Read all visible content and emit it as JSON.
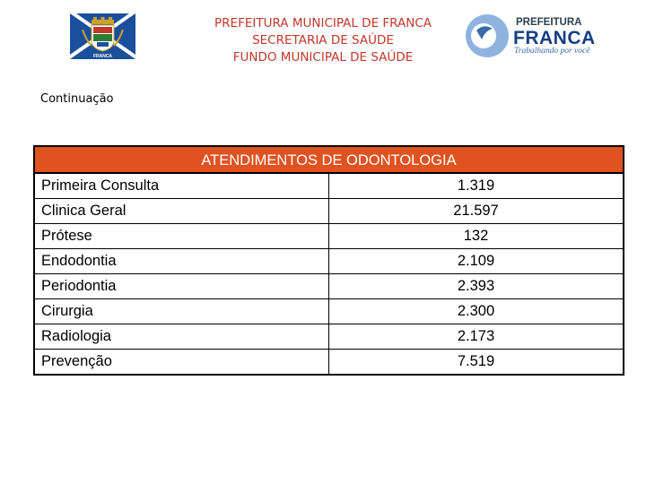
{
  "header": {
    "line1": "PREFEITURA MUNICIPAL DE FRANCA",
    "line2": "SECRETARIA DE SAÚDE",
    "line3": "FUNDO MUNICIPAL DE SAÚDE",
    "text_color": "#c0392b"
  },
  "flag": {
    "label": "FRANCA",
    "color": "#1a4f9c"
  },
  "logo": {
    "line1": "PREFEITURA",
    "line2": "FRANCA",
    "tagline": "Trabalhando por você"
  },
  "continuation_label": "Continuação",
  "table": {
    "title": "ATENDIMENTOS DE ODONTOLOGIA",
    "header_color": "#e0521f",
    "rows": [
      {
        "label": "Primeira Consulta",
        "value": "1.319"
      },
      {
        "label": "Clinica Geral",
        "value": "21.597"
      },
      {
        "label": "Prótese",
        "value": "132"
      },
      {
        "label": "Endodontia",
        "value": "2.109"
      },
      {
        "label": "Periodontia",
        "value": "2.393"
      },
      {
        "label": "Cirurgia",
        "value": "2.300"
      },
      {
        "label": "Radiologia",
        "value": "2.173"
      },
      {
        "label": "Prevenção",
        "value": "7.519"
      }
    ]
  }
}
